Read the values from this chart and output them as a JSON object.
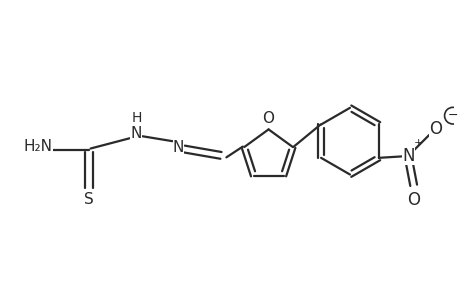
{
  "background_color": "#ffffff",
  "line_color": "#2a2a2a",
  "line_width": 1.6,
  "font_size": 10,
  "fig_width": 4.6,
  "fig_height": 3.0,
  "dpi": 100,
  "xlim": [
    0,
    9.2
  ],
  "ylim": [
    0,
    6.0
  ]
}
